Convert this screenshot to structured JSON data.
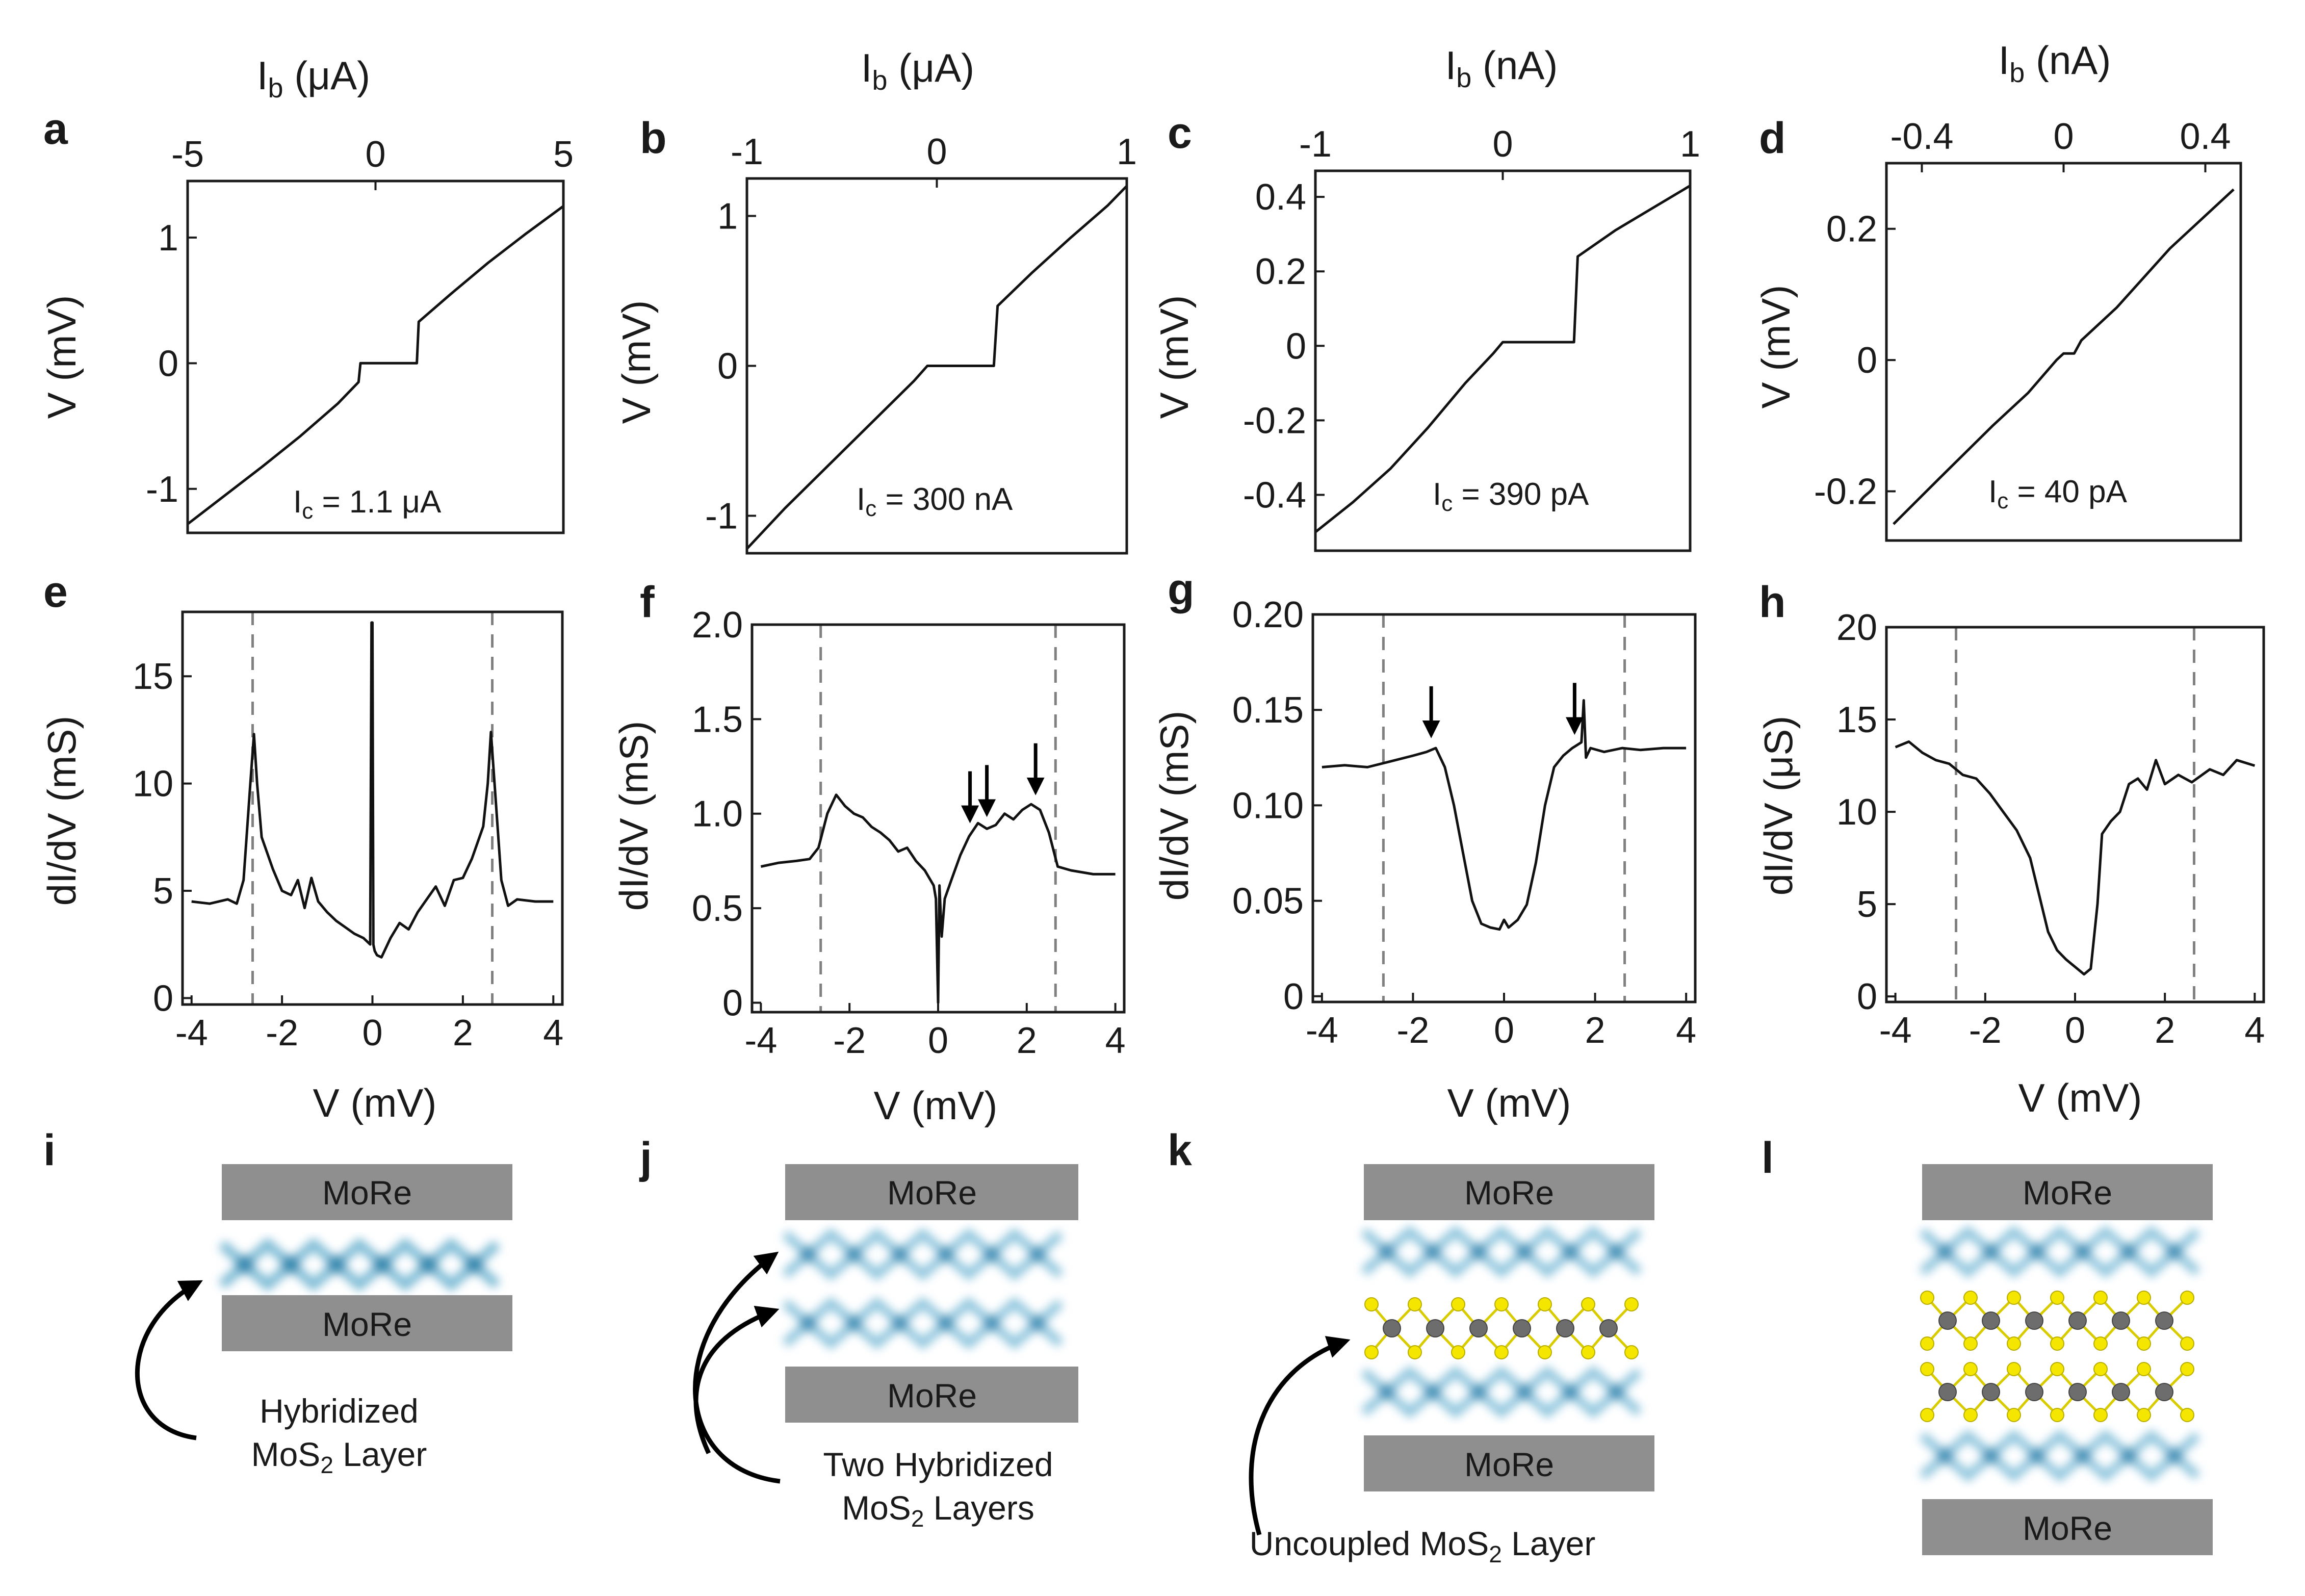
{
  "colors": {
    "line": "#111111",
    "dashed": "#808080",
    "electrode": "#8f8f8f",
    "mos2_blur": "#5fa9c9",
    "sulfur": "#f5e600",
    "molybdenum": "#6d6d6d"
  },
  "chart_data": [
    {
      "panel": "a",
      "type": "line",
      "top_xlabel": "I_b (μA)",
      "ylabel": "V (mV)",
      "xlim": [
        -5,
        5
      ],
      "ylim": [
        -1.35,
        1.45
      ],
      "xticks": [
        -5,
        0,
        5
      ],
      "xtick_labels": [
        "-5",
        "0",
        "5"
      ],
      "yticks": [
        -1,
        0,
        1
      ],
      "ytick_labels": [
        "-1",
        "0",
        "1"
      ],
      "annotation": "I_c = 1.1 μA",
      "x": [
        -5,
        -4,
        -3,
        -2,
        -1,
        -0.45,
        -0.4,
        1.1,
        1.15,
        2,
        3,
        4,
        5
      ],
      "y": [
        -1.28,
        -1.05,
        -0.82,
        -0.58,
        -0.32,
        -0.15,
        0,
        0,
        0.33,
        0.55,
        0.8,
        1.03,
        1.25
      ]
    },
    {
      "panel": "b",
      "type": "line",
      "top_xlabel": "I_b (μA)",
      "ylabel": "V (mV)",
      "xlim": [
        -1,
        1
      ],
      "ylim": [
        -1.25,
        1.25
      ],
      "xticks": [
        -1,
        0,
        1
      ],
      "xtick_labels": [
        "-1",
        "0",
        "1"
      ],
      "yticks": [
        -1,
        0,
        1
      ],
      "ytick_labels": [
        "-1",
        "0",
        "1"
      ],
      "annotation": "I_c = 300 nA",
      "x": [
        -1,
        -0.8,
        -0.6,
        -0.4,
        -0.2,
        -0.12,
        -0.05,
        0.3,
        0.32,
        0.5,
        0.7,
        0.9,
        1
      ],
      "y": [
        -1.22,
        -0.95,
        -0.7,
        -0.45,
        -0.2,
        -0.1,
        0,
        0,
        0.4,
        0.62,
        0.85,
        1.07,
        1.2
      ]
    },
    {
      "panel": "c",
      "type": "line",
      "top_xlabel": "I_b (nA)",
      "ylabel": "V (mV)",
      "xlim": [
        -1,
        1
      ],
      "ylim": [
        -0.55,
        0.47
      ],
      "xticks": [
        -1,
        0,
        1
      ],
      "xtick_labels": [
        "-1",
        "0",
        "1"
      ],
      "yticks": [
        -0.4,
        -0.2,
        0,
        0.2,
        0.4
      ],
      "ytick_labels": [
        "-0.4",
        "-0.2",
        "0",
        "0.2",
        "0.4"
      ],
      "annotation": "I_c = 390 pA",
      "x": [
        -1,
        -0.8,
        -0.6,
        -0.4,
        -0.2,
        -0.05,
        0,
        0.38,
        0.4,
        0.6,
        0.8,
        1
      ],
      "y": [
        -0.5,
        -0.42,
        -0.33,
        -0.22,
        -0.1,
        -0.02,
        0.01,
        0.01,
        0.24,
        0.31,
        0.37,
        0.43
      ]
    },
    {
      "panel": "d",
      "type": "line",
      "top_xlabel": "I_b (nA)",
      "ylabel": "V (mV)",
      "xlim": [
        -0.5,
        0.5
      ],
      "ylim": [
        -0.275,
        0.3
      ],
      "xticks": [
        -0.4,
        0,
        0.4
      ],
      "xtick_labels": [
        "-0.4",
        "0",
        "0.4"
      ],
      "yticks": [
        -0.2,
        0,
        0.2
      ],
      "ytick_labels": [
        "-0.2",
        "0",
        "0.2"
      ],
      "annotation": "I_c = 40 pA",
      "x": [
        -0.48,
        -0.35,
        -0.2,
        -0.1,
        -0.02,
        0,
        0.03,
        0.05,
        0.15,
        0.3,
        0.48
      ],
      "y": [
        -0.25,
        -0.18,
        -0.1,
        -0.05,
        0,
        0.01,
        0.01,
        0.03,
        0.08,
        0.17,
        0.26
      ]
    },
    {
      "panel": "e",
      "type": "line",
      "xlabel": "V (mV)",
      "ylabel": "dI/dV (mS)",
      "xlim": [
        -4.2,
        4.2
      ],
      "ylim": [
        -0.3,
        18
      ],
      "xticks": [
        -4,
        -2,
        0,
        2,
        4
      ],
      "xtick_labels": [
        "-4",
        "-2",
        "0",
        "2",
        "4"
      ],
      "yticks": [
        0,
        5,
        10,
        15
      ],
      "ytick_labels": [
        "0",
        "5",
        "10",
        "15"
      ],
      "dashed_lines_x": [
        -2.65,
        2.65
      ],
      "x": [
        -4,
        -3.6,
        -3.2,
        -3.0,
        -2.85,
        -2.7,
        -2.62,
        -2.55,
        -2.45,
        -2.2,
        -2.0,
        -1.8,
        -1.65,
        -1.5,
        -1.35,
        -1.2,
        -1.0,
        -0.8,
        -0.6,
        -0.4,
        -0.2,
        -0.05,
        -0.02,
        0,
        0.02,
        0.05,
        0.1,
        0.2,
        0.4,
        0.6,
        0.8,
        1.0,
        1.2,
        1.4,
        1.6,
        1.8,
        2.0,
        2.2,
        2.45,
        2.55,
        2.62,
        2.7,
        2.85,
        3.0,
        3.2,
        3.6,
        4
      ],
      "y": [
        4.5,
        4.4,
        4.6,
        4.4,
        5.5,
        10,
        12.3,
        10,
        7.5,
        6,
        5,
        4.8,
        5.5,
        4.2,
        5.6,
        4.5,
        4,
        3.6,
        3.3,
        3.0,
        2.8,
        2.5,
        17.5,
        17.5,
        2.5,
        2.2,
        2,
        1.9,
        2.8,
        3.5,
        3.2,
        4,
        4.6,
        5.2,
        4.3,
        5.5,
        5.6,
        6.5,
        8,
        10,
        12.4,
        10,
        5.5,
        4.3,
        4.6,
        4.5,
        4.5
      ]
    },
    {
      "panel": "f",
      "type": "line",
      "xlabel": "V (mV)",
      "ylabel": "dI/dV (mS)",
      "xlim": [
        -4.2,
        4.2
      ],
      "ylim": [
        -0.05,
        2.0
      ],
      "xticks": [
        -4,
        -2,
        0,
        2,
        4
      ],
      "xtick_labels": [
        "-4",
        "-2",
        "0",
        "2",
        "4"
      ],
      "yticks": [
        0,
        0.5,
        1.0,
        1.5,
        2.0
      ],
      "ytick_labels": [
        "0",
        "0.5",
        "1.0",
        "1.5",
        "2.0"
      ],
      "dashed_lines_x": [
        -2.65,
        2.65
      ],
      "arrows_x": [
        0.72,
        1.1,
        2.2
      ],
      "x": [
        -4,
        -3.6,
        -3.2,
        -2.9,
        -2.7,
        -2.5,
        -2.3,
        -2.1,
        -1.9,
        -1.7,
        -1.5,
        -1.3,
        -1.1,
        -0.9,
        -0.7,
        -0.5,
        -0.3,
        -0.1,
        -0.05,
        0,
        0.03,
        0.08,
        0.15,
        0.3,
        0.5,
        0.7,
        0.9,
        1.1,
        1.3,
        1.5,
        1.7,
        1.9,
        2.1,
        2.3,
        2.5,
        2.7,
        3.0,
        3.5,
        4
      ],
      "y": [
        0.72,
        0.74,
        0.75,
        0.76,
        0.82,
        1.0,
        1.1,
        1.04,
        1.0,
        0.98,
        0.93,
        0.9,
        0.86,
        0.8,
        0.82,
        0.75,
        0.7,
        0.62,
        0.55,
        0.0,
        0.62,
        0.35,
        0.55,
        0.65,
        0.78,
        0.88,
        0.95,
        0.92,
        0.94,
        1.0,
        0.97,
        1.02,
        1.05,
        1.02,
        0.9,
        0.72,
        0.7,
        0.68,
        0.68
      ]
    },
    {
      "panel": "g",
      "type": "line",
      "xlabel": "V (mV)",
      "ylabel": "dI/dV (mS)",
      "xlim": [
        -4.2,
        4.2
      ],
      "ylim": [
        -0.003,
        0.2
      ],
      "xticks": [
        -4,
        -2,
        0,
        2,
        4
      ],
      "xtick_labels": [
        "-4",
        "-2",
        "0",
        "2",
        "4"
      ],
      "yticks": [
        0,
        0.05,
        0.1,
        0.15,
        0.2
      ],
      "ytick_labels": [
        "0",
        "0.05",
        "0.10",
        "0.15",
        "0.20"
      ],
      "dashed_lines_x": [
        -2.65,
        2.65
      ],
      "arrows_x": [
        -1.6,
        1.55
      ],
      "x": [
        -4,
        -3.5,
        -3.0,
        -2.5,
        -2.0,
        -1.7,
        -1.5,
        -1.3,
        -1.1,
        -0.9,
        -0.7,
        -0.5,
        -0.3,
        -0.1,
        0,
        0.1,
        0.3,
        0.5,
        0.7,
        0.9,
        1.1,
        1.3,
        1.5,
        1.7,
        1.75,
        1.8,
        1.9,
        2.2,
        2.6,
        3.0,
        3.5,
        4
      ],
      "y": [
        0.12,
        0.121,
        0.12,
        0.123,
        0.126,
        0.128,
        0.13,
        0.12,
        0.1,
        0.075,
        0.05,
        0.038,
        0.036,
        0.035,
        0.04,
        0.036,
        0.04,
        0.048,
        0.07,
        0.1,
        0.12,
        0.126,
        0.13,
        0.133,
        0.155,
        0.125,
        0.13,
        0.128,
        0.13,
        0.129,
        0.13,
        0.13
      ]
    },
    {
      "panel": "h",
      "type": "line",
      "xlabel": "V (mV)",
      "ylabel": "dI/dV (μS)",
      "xlim": [
        -4.2,
        4.2
      ],
      "ylim": [
        -0.3,
        20
      ],
      "xticks": [
        -4,
        -2,
        0,
        2,
        4
      ],
      "xtick_labels": [
        "-4",
        "-2",
        "0",
        "2",
        "4"
      ],
      "yticks": [
        0,
        5,
        10,
        15,
        20
      ],
      "ytick_labels": [
        "0",
        "5",
        "10",
        "15",
        "20"
      ],
      "dashed_lines_x": [
        -2.65,
        2.65
      ],
      "x": [
        -4,
        -3.7,
        -3.4,
        -3.1,
        -2.8,
        -2.5,
        -2.2,
        -1.9,
        -1.6,
        -1.3,
        -1.0,
        -0.8,
        -0.6,
        -0.4,
        -0.2,
        0,
        0.2,
        0.35,
        0.5,
        0.6,
        0.8,
        1.0,
        1.2,
        1.4,
        1.6,
        1.8,
        2.0,
        2.3,
        2.6,
        3.0,
        3.3,
        3.6,
        4
      ],
      "y": [
        13.5,
        13.8,
        13.2,
        12.8,
        12.6,
        12.0,
        11.8,
        11.0,
        10.0,
        9.0,
        7.5,
        5.5,
        3.5,
        2.5,
        2.0,
        1.6,
        1.2,
        1.5,
        5.0,
        8.8,
        9.5,
        10.0,
        11.5,
        11.8,
        11.2,
        12.8,
        11.5,
        12.0,
        11.6,
        12.3,
        12.0,
        12.8,
        12.5
      ]
    }
  ],
  "panel_labels": [
    "a",
    "b",
    "c",
    "d",
    "e",
    "f",
    "g",
    "h",
    "i",
    "j",
    "k",
    "l"
  ],
  "texts": {
    "a": {
      "top_xlabel_main": "I",
      "top_xlabel_sub": "b",
      "top_xlabel_unit": " (μA)",
      "ylabel": "V (mV)",
      "ann_main": "I",
      "ann_sub": "c",
      "ann_val": " = 1.1 μA"
    },
    "b": {
      "top_xlabel_main": "I",
      "top_xlabel_sub": "b",
      "top_xlabel_unit": " (μA)",
      "ylabel": "V (mV)",
      "ann_main": "I",
      "ann_sub": "c",
      "ann_val": " = 300 nA"
    },
    "c": {
      "top_xlabel_main": "I",
      "top_xlabel_sub": "b",
      "top_xlabel_unit": " (nA)",
      "ylabel": "V (mV)",
      "ann_main": "I",
      "ann_sub": "c",
      "ann_val": " = 390 pA"
    },
    "d": {
      "top_xlabel_main": "I",
      "top_xlabel_sub": "b",
      "top_xlabel_unit": " (nA)",
      "ylabel": "V (mV)",
      "ann_main": "I",
      "ann_sub": "c",
      "ann_val": " = 40 pA"
    },
    "e": {
      "xlabel": "V (mV)",
      "ylabel": "dI/dV (mS)"
    },
    "f": {
      "xlabel": "V (mV)",
      "ylabel": "dI/dV (mS)"
    },
    "g": {
      "xlabel": "V (mV)",
      "ylabel": "dI/dV (mS)"
    },
    "h": {
      "xlabel": "V (mV)",
      "ylabel": "dI/dV (μS)"
    }
  },
  "schematics": {
    "electrode_label": "MoRe",
    "i": {
      "caption_line1": "Hybridized",
      "caption_line2_pre": "MoS",
      "caption_line2_sub": "2",
      "caption_line2_post": " Layer"
    },
    "j": {
      "caption_line1": "Two Hybridized",
      "caption_line2_pre": "MoS",
      "caption_line2_sub": "2",
      "caption_line2_post": " Layers"
    },
    "k": {
      "caption_line1_pre": "Uncoupled MoS",
      "caption_line1_sub": "2",
      "caption_line1_post": " Layer"
    },
    "l": {}
  }
}
